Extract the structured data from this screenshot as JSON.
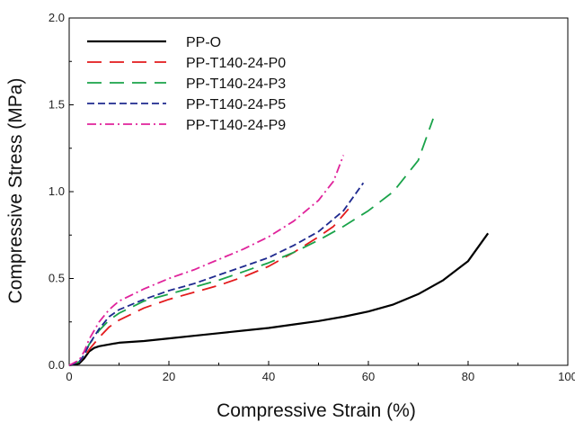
{
  "chart_data": {
    "type": "line",
    "title": "",
    "xlabel": "Compressive Strain (%)",
    "ylabel": "Compressive Stress (MPa)",
    "xlim": [
      0,
      100
    ],
    "ylim": [
      0,
      2.0
    ],
    "x_ticks": [
      "0",
      "20",
      "40",
      "60",
      "80",
      "100"
    ],
    "y_ticks": [
      "0.0",
      "0.5",
      "1.0",
      "1.5",
      "2.0"
    ],
    "grid": false,
    "legend_position": "top-left",
    "series": [
      {
        "name": "PP-O",
        "color": "#000000",
        "dash": "solid",
        "points": [
          [
            0,
            0
          ],
          [
            2,
            0.01
          ],
          [
            3,
            0.04
          ],
          [
            4,
            0.08
          ],
          [
            5,
            0.1
          ],
          [
            6,
            0.11
          ],
          [
            8,
            0.12
          ],
          [
            10,
            0.13
          ],
          [
            15,
            0.14
          ],
          [
            20,
            0.155
          ],
          [
            25,
            0.17
          ],
          [
            30,
            0.185
          ],
          [
            35,
            0.2
          ],
          [
            40,
            0.215
          ],
          [
            45,
            0.235
          ],
          [
            50,
            0.255
          ],
          [
            55,
            0.28
          ],
          [
            60,
            0.31
          ],
          [
            65,
            0.35
          ],
          [
            70,
            0.41
          ],
          [
            75,
            0.49
          ],
          [
            80,
            0.6
          ],
          [
            84,
            0.76
          ]
        ]
      },
      {
        "name": "PP-T140-24-P0",
        "color": "#e31a1c",
        "dash": "long-dash",
        "points": [
          [
            0,
            0
          ],
          [
            2,
            0.02
          ],
          [
            3,
            0.05
          ],
          [
            4,
            0.09
          ],
          [
            6,
            0.16
          ],
          [
            8,
            0.22
          ],
          [
            10,
            0.26
          ],
          [
            15,
            0.33
          ],
          [
            20,
            0.38
          ],
          [
            25,
            0.42
          ],
          [
            30,
            0.46
          ],
          [
            35,
            0.51
          ],
          [
            40,
            0.57
          ],
          [
            45,
            0.65
          ],
          [
            50,
            0.74
          ],
          [
            53,
            0.8
          ],
          [
            56,
            0.9
          ]
        ]
      },
      {
        "name": "PP-T140-24-P3",
        "color": "#1aa34a",
        "dash": "long-dash",
        "points": [
          [
            0,
            0
          ],
          [
            2,
            0.02
          ],
          [
            3,
            0.06
          ],
          [
            4,
            0.12
          ],
          [
            6,
            0.2
          ],
          [
            8,
            0.26
          ],
          [
            10,
            0.3
          ],
          [
            15,
            0.37
          ],
          [
            20,
            0.41
          ],
          [
            25,
            0.45
          ],
          [
            30,
            0.49
          ],
          [
            35,
            0.54
          ],
          [
            40,
            0.59
          ],
          [
            45,
            0.65
          ],
          [
            50,
            0.72
          ],
          [
            55,
            0.8
          ],
          [
            60,
            0.89
          ],
          [
            65,
            1.0
          ],
          [
            70,
            1.18
          ],
          [
            73,
            1.42
          ]
        ]
      },
      {
        "name": "PP-T140-24-P5",
        "color": "#1f2a8f",
        "dash": "short-dash",
        "points": [
          [
            0,
            0
          ],
          [
            2,
            0.02
          ],
          [
            3,
            0.06
          ],
          [
            4,
            0.12
          ],
          [
            6,
            0.21
          ],
          [
            8,
            0.28
          ],
          [
            10,
            0.32
          ],
          [
            15,
            0.38
          ],
          [
            20,
            0.43
          ],
          [
            25,
            0.47
          ],
          [
            30,
            0.52
          ],
          [
            35,
            0.57
          ],
          [
            40,
            0.62
          ],
          [
            45,
            0.69
          ],
          [
            50,
            0.77
          ],
          [
            55,
            0.89
          ],
          [
            59,
            1.05
          ]
        ]
      },
      {
        "name": "PP-T140-24-P9",
        "color": "#e0239b",
        "dash": "dash-dot",
        "points": [
          [
            0,
            0
          ],
          [
            2,
            0.03
          ],
          [
            3,
            0.08
          ],
          [
            4,
            0.15
          ],
          [
            6,
            0.25
          ],
          [
            8,
            0.32
          ],
          [
            10,
            0.37
          ],
          [
            15,
            0.44
          ],
          [
            20,
            0.5
          ],
          [
            25,
            0.55
          ],
          [
            30,
            0.61
          ],
          [
            35,
            0.67
          ],
          [
            40,
            0.74
          ],
          [
            45,
            0.83
          ],
          [
            50,
            0.95
          ],
          [
            53,
            1.06
          ],
          [
            55,
            1.21
          ]
        ]
      }
    ]
  }
}
